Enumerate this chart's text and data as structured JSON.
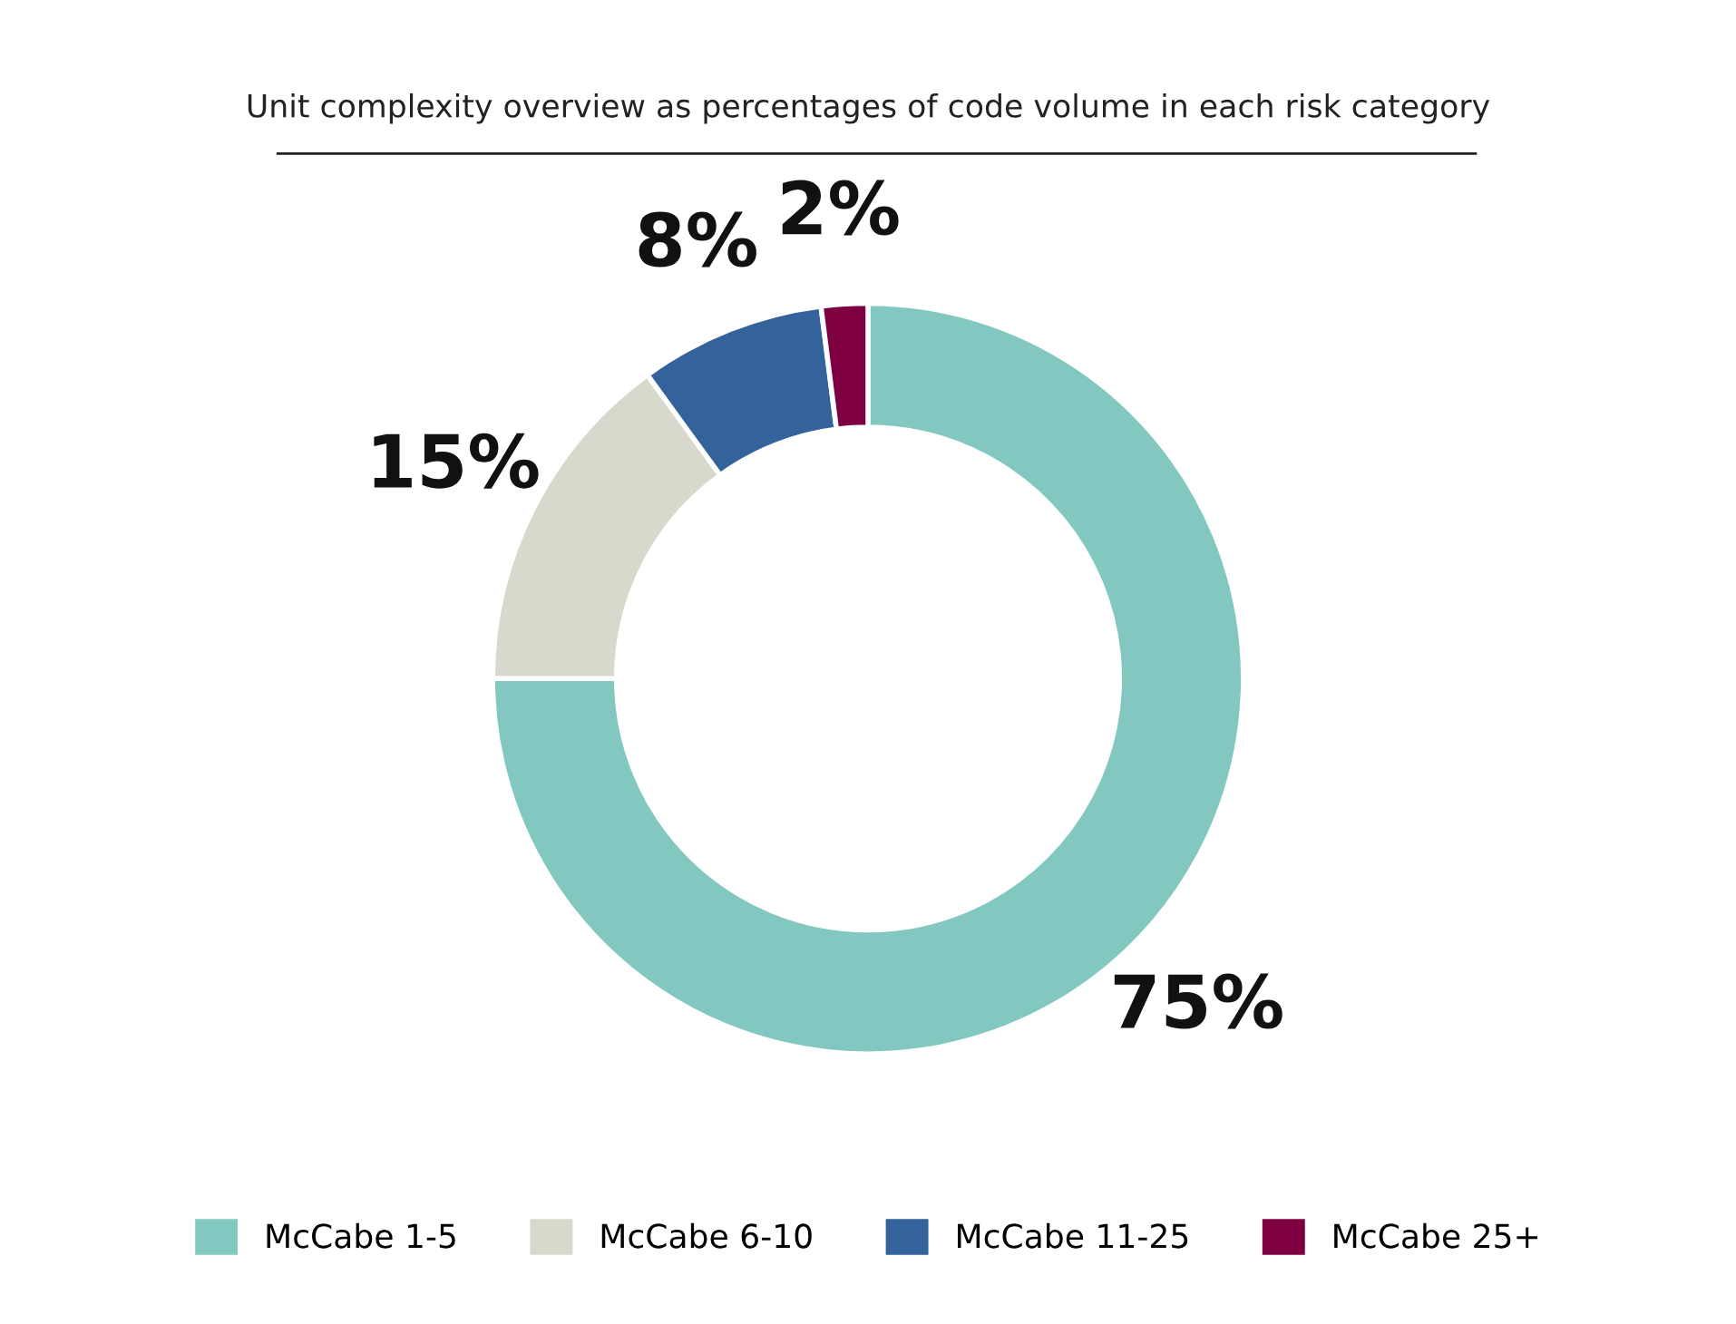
{
  "chart_data": {
    "type": "donut",
    "title": "Unit complexity overview as percentages of code volume in each risk category",
    "categories": [
      "McCabe 1-5",
      "McCabe 6-10",
      "McCabe 11-25",
      "McCabe 25+"
    ],
    "values": [
      75,
      15,
      8,
      2
    ],
    "colors": [
      "#82c8c0",
      "#d8d8cc",
      "#33639a",
      "#7f0040"
    ],
    "value_labels": [
      "75%",
      "15%",
      "8%",
      "2%"
    ],
    "legend": "bottom"
  }
}
